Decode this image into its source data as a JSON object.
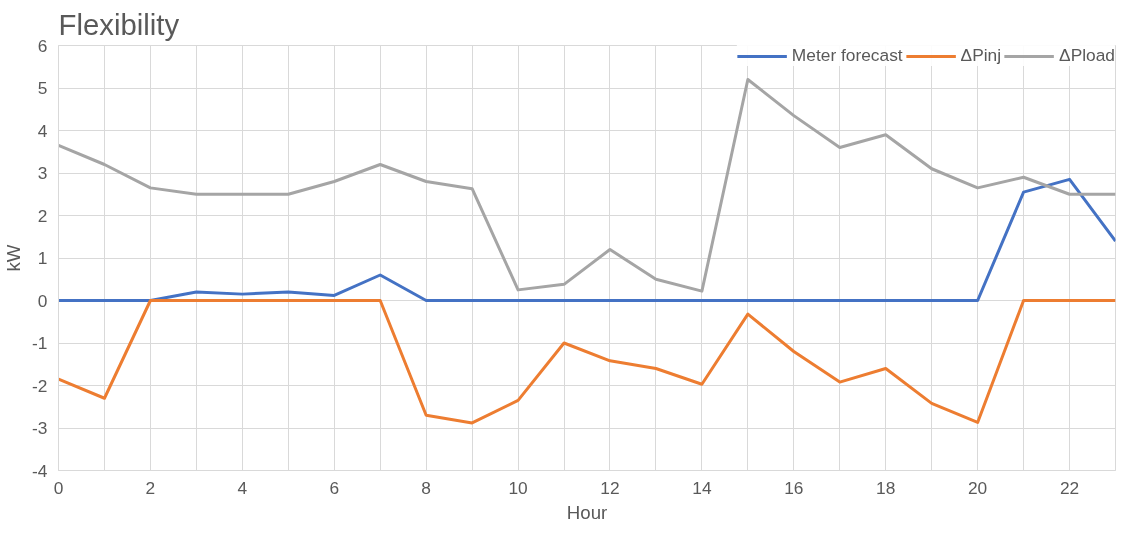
{
  "chart_data": {
    "type": "line",
    "title": "Flexibility",
    "xlabel": "Hour",
    "ylabel": "kW",
    "x": [
      0,
      1,
      2,
      3,
      4,
      5,
      6,
      7,
      8,
      9,
      10,
      11,
      12,
      13,
      14,
      15,
      16,
      17,
      18,
      19,
      20,
      21,
      22,
      23
    ],
    "series": [
      {
        "name": "Meter forecast",
        "color": "#4472c4",
        "values": [
          0,
          0,
          0,
          0.2,
          0.15,
          0.2,
          0.12,
          0.6,
          0,
          0,
          0,
          0,
          0,
          0,
          0,
          0,
          0,
          0,
          0,
          0,
          0,
          2.55,
          2.85,
          1.4
        ]
      },
      {
        "name": "ΔPinj",
        "color": "#ed7d31",
        "values": [
          -1.85,
          -2.3,
          0,
          0,
          0,
          0,
          0,
          0,
          -2.7,
          -2.88,
          -2.35,
          -1.0,
          -1.42,
          -1.6,
          -1.97,
          -0.32,
          -1.2,
          -1.92,
          -1.6,
          -2.42,
          -2.87,
          0,
          0,
          0
        ]
      },
      {
        "name": "ΔPload",
        "color": "#a5a5a5",
        "values": [
          3.65,
          3.2,
          2.65,
          2.5,
          2.5,
          2.5,
          2.8,
          3.2,
          2.8,
          2.63,
          0.25,
          0.38,
          1.2,
          0.5,
          0.22,
          5.2,
          4.35,
          3.6,
          3.9,
          3.1,
          2.65,
          2.9,
          2.5,
          2.5
        ]
      }
    ],
    "xlim": [
      0,
      23
    ],
    "xticks": [
      0,
      {
        "value": 1,
        "label": null
      },
      2,
      {
        "value": 3,
        "label": null
      },
      4,
      {
        "value": 5,
        "label": null
      },
      6,
      {
        "value": 7,
        "label": null
      },
      8,
      {
        "value": 9,
        "label": null
      },
      10,
      {
        "value": 11,
        "label": null
      },
      12,
      {
        "value": 13,
        "label": null
      },
      14,
      {
        "value": 15,
        "label": null
      },
      16,
      {
        "value": 17,
        "label": null
      },
      18,
      {
        "value": 19,
        "label": null
      },
      20,
      {
        "value": 21,
        "label": null
      },
      22,
      {
        "value": 23,
        "label": null
      }
    ],
    "ylim": [
      -4,
      6
    ],
    "yticks": [
      -4,
      -3,
      -2,
      -1,
      0,
      1,
      2,
      3,
      4,
      5,
      6
    ],
    "grid": true,
    "legend": "top right",
    "marker": "none",
    "line_style": "solid"
  }
}
